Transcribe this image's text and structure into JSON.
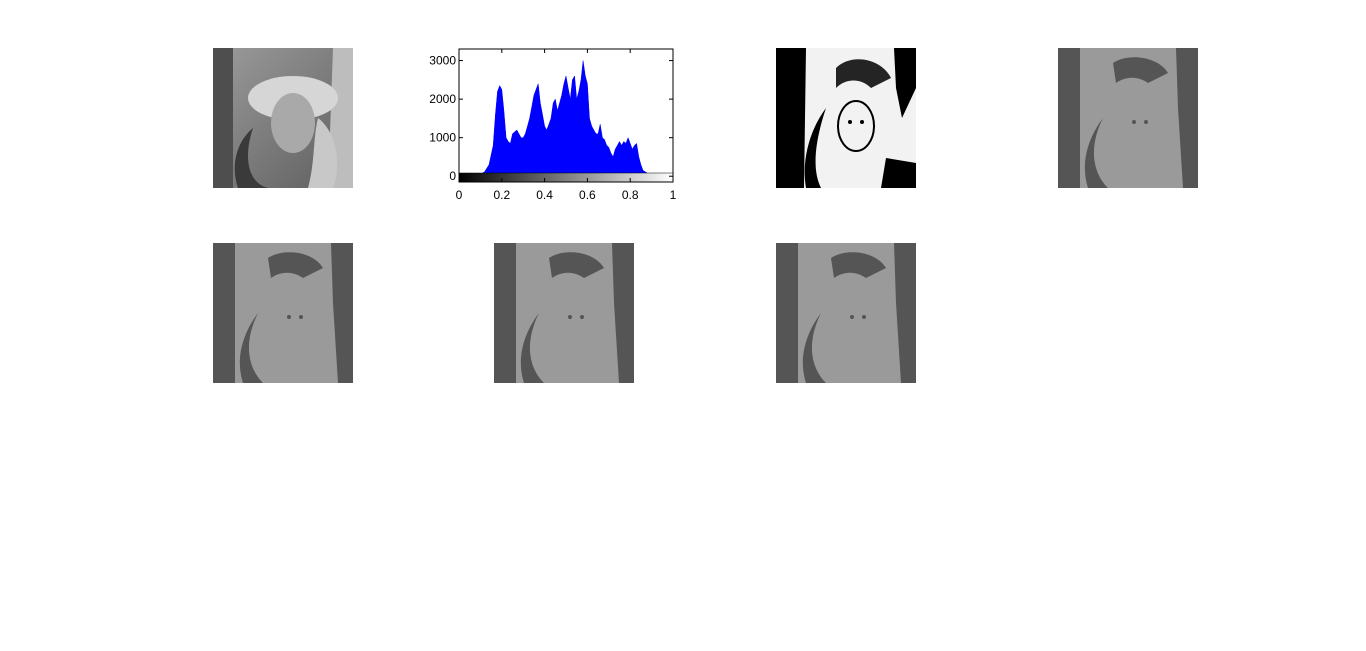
{
  "figure": {
    "panels": [
      {
        "id": "original",
        "desc": "grayscale portrait",
        "colors": {
          "bg": "#8a8a8a",
          "dark": "#3a3a3a",
          "light": "#cfcfcf"
        }
      },
      {
        "id": "binary",
        "desc": "black/white thresholded portrait",
        "colors": {
          "bg": "#f2f2f2",
          "dark": "#000000",
          "light": "#f2f2f2"
        }
      },
      {
        "id": "two-level-1",
        "colors": {
          "bg": "#9a9a9a",
          "dark": "#555555"
        }
      },
      {
        "id": "two-level-2",
        "colors": {
          "bg": "#9a9a9a",
          "dark": "#555555"
        }
      },
      {
        "id": "two-level-3",
        "colors": {
          "bg": "#9a9a9a",
          "dark": "#555555"
        }
      },
      {
        "id": "two-level-4",
        "colors": {
          "bg": "#9a9a9a",
          "dark": "#555555"
        }
      }
    ]
  },
  "chart_data": {
    "type": "area",
    "title": "",
    "xlabel": "",
    "ylabel": "",
    "xlim": [
      0,
      1
    ],
    "ylim": [
      -150,
      3300
    ],
    "xticks": [
      "0",
      "0.2",
      "0.4",
      "0.6",
      "0.8",
      "1"
    ],
    "xtick_values": [
      0,
      0.2,
      0.4,
      0.6,
      0.8,
      1
    ],
    "yticks": [
      "0",
      "1000",
      "2000",
      "3000"
    ],
    "ytick_values": [
      0,
      1000,
      2000,
      3000
    ],
    "fill_color": "#0000ff",
    "colorbar": "grayscale gradient from black to white",
    "series": [
      {
        "x": [
          0.0,
          0.05,
          0.1,
          0.12,
          0.14,
          0.16,
          0.17,
          0.18,
          0.19,
          0.2,
          0.21,
          0.22,
          0.23,
          0.24,
          0.25,
          0.27,
          0.29,
          0.3,
          0.31,
          0.32,
          0.33,
          0.34,
          0.35,
          0.37,
          0.38,
          0.39,
          0.4,
          0.41,
          0.42,
          0.43,
          0.44,
          0.45,
          0.46,
          0.47,
          0.48,
          0.49,
          0.5,
          0.51,
          0.52,
          0.53,
          0.54,
          0.55,
          0.56,
          0.57,
          0.58,
          0.59,
          0.6,
          0.61,
          0.62,
          0.63,
          0.64,
          0.65,
          0.66,
          0.67,
          0.68,
          0.69,
          0.7,
          0.71,
          0.72,
          0.73,
          0.74,
          0.75,
          0.76,
          0.77,
          0.78,
          0.79,
          0.8,
          0.81,
          0.82,
          0.83,
          0.84,
          0.85,
          0.86,
          0.88,
          0.9,
          0.92,
          0.95,
          1.0
        ],
        "y": [
          0,
          20,
          40,
          120,
          300,
          800,
          1600,
          2200,
          2350,
          2250,
          1700,
          1000,
          900,
          850,
          1100,
          1200,
          1000,
          1000,
          1100,
          1300,
          1500,
          1800,
          2100,
          2400,
          1900,
          1600,
          1300,
          1200,
          1350,
          1500,
          1900,
          2000,
          1700,
          1900,
          2100,
          2400,
          2600,
          2300,
          2000,
          2500,
          2600,
          2000,
          2200,
          2500,
          3000,
          2600,
          2400,
          1500,
          1300,
          1200,
          1100,
          1100,
          1350,
          1000,
          950,
          800,
          750,
          600,
          500,
          700,
          800,
          900,
          800,
          900,
          850,
          1000,
          850,
          700,
          800,
          850,
          500,
          300,
          150,
          80,
          40,
          20,
          10,
          0
        ]
      }
    ]
  }
}
